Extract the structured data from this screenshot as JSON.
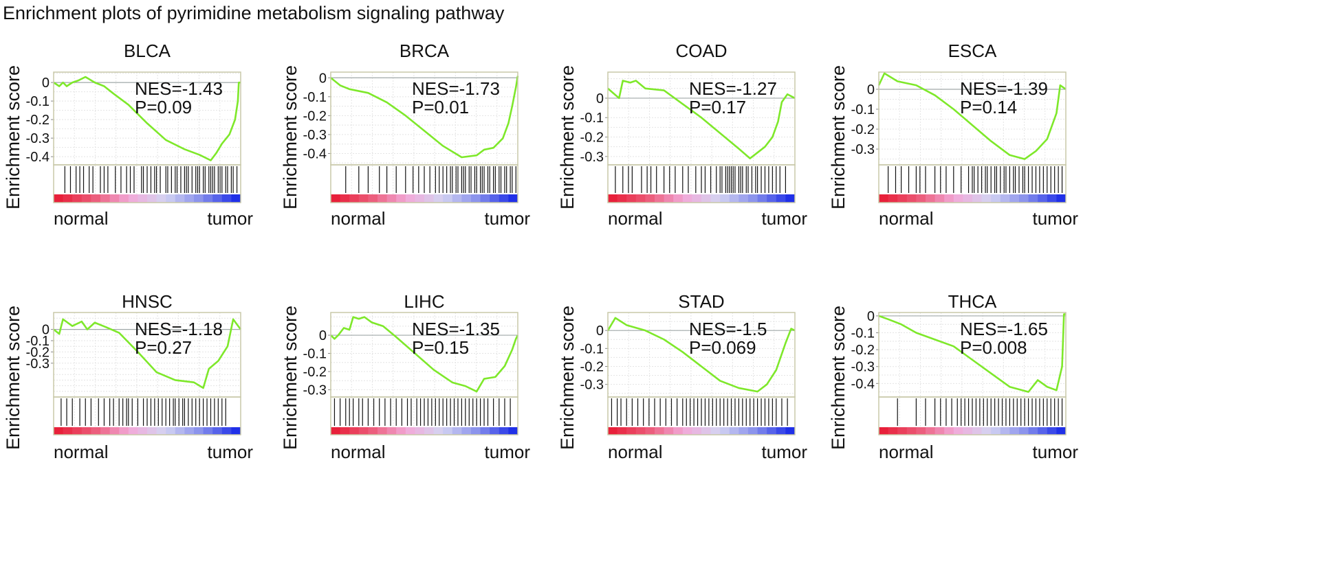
{
  "figure_title": "Enrichment plots of pyrimidine metabolism signaling pathway",
  "colors": {
    "curve": "#7ee82a",
    "frame": "#c8c8a8",
    "zero_line": "#a0a8a8",
    "hits": "#111111",
    "bar_low": "#e8203a",
    "bar_mid_pink": "#f2a8d8",
    "bar_mid_lavender": "#d4d4f2",
    "bar_high": "#2030e8"
  },
  "chart_data": [
    {
      "type": "line",
      "title": "BLCA",
      "ylabel": "Enrichment score",
      "xlabel_left": "normal",
      "xlabel_right": "tumor",
      "nes": "NES=-1.43",
      "p": "P=0.09",
      "ylim": [
        -0.444,
        0.056
      ],
      "yticks": [
        0,
        -0.1,
        -0.2,
        -0.3,
        -0.4
      ],
      "ytick_labels": [
        "0",
        "-0.1",
        "-0.2",
        "-0.3",
        "-0.4"
      ],
      "grid": true,
      "points": [
        [
          0,
          0
        ],
        [
          0.03,
          -0.02
        ],
        [
          0.05,
          0.0
        ],
        [
          0.07,
          -0.02
        ],
        [
          0.1,
          0.0
        ],
        [
          0.13,
          0.01
        ],
        [
          0.17,
          0.03
        ],
        [
          0.22,
          0.0
        ],
        [
          0.27,
          -0.02
        ],
        [
          0.32,
          -0.06
        ],
        [
          0.4,
          -0.12
        ],
        [
          0.5,
          -0.22
        ],
        [
          0.6,
          -0.31
        ],
        [
          0.7,
          -0.36
        ],
        [
          0.78,
          -0.39
        ],
        [
          0.84,
          -0.42
        ],
        [
          0.87,
          -0.38
        ],
        [
          0.9,
          -0.33
        ],
        [
          0.94,
          -0.28
        ],
        [
          0.97,
          -0.2
        ],
        [
          0.985,
          -0.1
        ],
        [
          0.99,
          0.0
        ],
        [
          1.0,
          0.0
        ]
      ],
      "hits": [
        0.06,
        0.09,
        0.12,
        0.14,
        0.16,
        0.19,
        0.21,
        0.25,
        0.27,
        0.29,
        0.33,
        0.36,
        0.39,
        0.41,
        0.43,
        0.47,
        0.48,
        0.5,
        0.52,
        0.54,
        0.55,
        0.57,
        0.6,
        0.61,
        0.63,
        0.65,
        0.66,
        0.68,
        0.7,
        0.71,
        0.72,
        0.74,
        0.76,
        0.77,
        0.78,
        0.8,
        0.81,
        0.83,
        0.84,
        0.85,
        0.86,
        0.88,
        0.89,
        0.9,
        0.92,
        0.93,
        0.95,
        0.96,
        0.98
      ]
    },
    {
      "type": "line",
      "title": "BRCA",
      "ylabel": "Enrichment score",
      "xlabel_left": "normal",
      "xlabel_right": "tumor",
      "nes": "NES=-1.73",
      "p": "P=0.01",
      "ylim": [
        -0.46,
        0.03
      ],
      "yticks": [
        0,
        -0.1,
        -0.2,
        -0.3,
        -0.4
      ],
      "ytick_labels": [
        "0",
        "-0.1",
        "-0.2",
        "-0.3",
        "-0.4"
      ],
      "grid": true,
      "points": [
        [
          0,
          0
        ],
        [
          0.05,
          -0.04
        ],
        [
          0.1,
          -0.06
        ],
        [
          0.2,
          -0.08
        ],
        [
          0.3,
          -0.13
        ],
        [
          0.4,
          -0.2
        ],
        [
          0.5,
          -0.28
        ],
        [
          0.6,
          -0.36
        ],
        [
          0.7,
          -0.42
        ],
        [
          0.78,
          -0.41
        ],
        [
          0.82,
          -0.38
        ],
        [
          0.87,
          -0.37
        ],
        [
          0.92,
          -0.32
        ],
        [
          0.95,
          -0.24
        ],
        [
          0.97,
          -0.15
        ],
        [
          0.99,
          -0.05
        ],
        [
          1.0,
          0.01
        ]
      ],
      "hits": [
        0.08,
        0.15,
        0.2,
        0.26,
        0.3,
        0.35,
        0.4,
        0.44,
        0.47,
        0.5,
        0.53,
        0.56,
        0.58,
        0.6,
        0.62,
        0.64,
        0.65,
        0.67,
        0.68,
        0.7,
        0.71,
        0.72,
        0.74,
        0.75,
        0.77,
        0.78,
        0.8,
        0.81,
        0.82,
        0.84,
        0.85,
        0.87,
        0.88,
        0.9,
        0.91,
        0.93,
        0.94,
        0.96,
        0.97,
        0.99
      ]
    },
    {
      "type": "line",
      "title": "COAD",
      "ylabel": "Enrichment score",
      "xlabel_left": "normal",
      "xlabel_right": "tumor",
      "nes": "NES=-1.27",
      "p": "P=0.17",
      "ylim": [
        -0.343,
        0.134
      ],
      "yticks": [
        0,
        -0.1,
        -0.2,
        -0.3
      ],
      "ytick_labels": [
        "0",
        "-0.1",
        "-0.2",
        "-0.3"
      ],
      "grid": true,
      "points": [
        [
          0,
          0.05
        ],
        [
          0.06,
          0.0
        ],
        [
          0.08,
          0.09
        ],
        [
          0.12,
          0.08
        ],
        [
          0.15,
          0.09
        ],
        [
          0.2,
          0.05
        ],
        [
          0.3,
          0.04
        ],
        [
          0.4,
          -0.03
        ],
        [
          0.5,
          -0.1
        ],
        [
          0.6,
          -0.18
        ],
        [
          0.7,
          -0.26
        ],
        [
          0.76,
          -0.31
        ],
        [
          0.8,
          -0.28
        ],
        [
          0.84,
          -0.25
        ],
        [
          0.88,
          -0.2
        ],
        [
          0.91,
          -0.12
        ],
        [
          0.93,
          -0.02
        ],
        [
          0.96,
          0.02
        ],
        [
          1.0,
          0.0
        ]
      ],
      "hits": [
        0.04,
        0.08,
        0.11,
        0.13,
        0.18,
        0.21,
        0.23,
        0.26,
        0.3,
        0.33,
        0.36,
        0.4,
        0.43,
        0.47,
        0.5,
        0.52,
        0.55,
        0.58,
        0.6,
        0.61,
        0.63,
        0.64,
        0.65,
        0.66,
        0.67,
        0.68,
        0.7,
        0.71,
        0.72,
        0.74,
        0.75,
        0.77,
        0.79,
        0.8,
        0.82,
        0.84,
        0.86,
        0.88,
        0.9,
        0.92,
        0.95
      ]
    },
    {
      "type": "line",
      "title": "ESCA",
      "ylabel": "Enrichment score",
      "xlabel_left": "normal",
      "xlabel_right": "tumor",
      "nes": "NES=-1.39",
      "p": "P=0.14",
      "ylim": [
        -0.379,
        0.086
      ],
      "yticks": [
        0,
        -0.1,
        -0.2,
        -0.3
      ],
      "ytick_labels": [
        "0",
        "-0.1",
        "-0.2",
        "-0.3"
      ],
      "grid": true,
      "points": [
        [
          0,
          0.02
        ],
        [
          0.03,
          0.08
        ],
        [
          0.1,
          0.04
        ],
        [
          0.2,
          0.02
        ],
        [
          0.3,
          -0.03
        ],
        [
          0.4,
          -0.1
        ],
        [
          0.5,
          -0.18
        ],
        [
          0.6,
          -0.26
        ],
        [
          0.7,
          -0.33
        ],
        [
          0.78,
          -0.35
        ],
        [
          0.84,
          -0.31
        ],
        [
          0.9,
          -0.25
        ],
        [
          0.95,
          -0.12
        ],
        [
          0.97,
          0.02
        ],
        [
          1.0,
          0.0
        ]
      ],
      "hits": [
        0.05,
        0.09,
        0.12,
        0.16,
        0.2,
        0.22,
        0.25,
        0.3,
        0.33,
        0.36,
        0.4,
        0.44,
        0.48,
        0.5,
        0.51,
        0.53,
        0.55,
        0.57,
        0.58,
        0.6,
        0.62,
        0.63,
        0.65,
        0.67,
        0.68,
        0.7,
        0.72,
        0.73,
        0.75,
        0.77,
        0.78,
        0.8,
        0.82,
        0.84,
        0.86,
        0.88,
        0.9,
        0.92,
        0.94,
        0.96,
        0.98
      ]
    },
    {
      "type": "line",
      "title": "HNSC",
      "ylabel": "Enrichment score",
      "xlabel_left": "normal",
      "xlabel_right": "tumor",
      "nes": "NES=-1.18",
      "p": "P=0.27",
      "ylim": [
        -0.6,
        0.15
      ],
      "yticks": [
        0,
        -0.1,
        -0.2,
        -0.3
      ],
      "ytick_labels": [
        "0",
        "-0.1",
        "-0.2",
        "-0.3"
      ],
      "grid": true,
      "points": [
        [
          0,
          0
        ],
        [
          0.03,
          -0.04
        ],
        [
          0.05,
          0.09
        ],
        [
          0.1,
          0.03
        ],
        [
          0.15,
          0.07
        ],
        [
          0.18,
          0.0
        ],
        [
          0.22,
          0.06
        ],
        [
          0.28,
          0.02
        ],
        [
          0.35,
          -0.03
        ],
        [
          0.45,
          -0.2
        ],
        [
          0.55,
          -0.38
        ],
        [
          0.65,
          -0.45
        ],
        [
          0.75,
          -0.47
        ],
        [
          0.8,
          -0.52
        ],
        [
          0.83,
          -0.35
        ],
        [
          0.88,
          -0.28
        ],
        [
          0.93,
          -0.15
        ],
        [
          0.96,
          0.09
        ],
        [
          1.0,
          0.0
        ]
      ],
      "hits": [
        0.04,
        0.07,
        0.1,
        0.14,
        0.17,
        0.2,
        0.24,
        0.27,
        0.3,
        0.32,
        0.35,
        0.37,
        0.39,
        0.4,
        0.42,
        0.45,
        0.48,
        0.5,
        0.52,
        0.54,
        0.56,
        0.58,
        0.6,
        0.62,
        0.64,
        0.65,
        0.67,
        0.69,
        0.7,
        0.72,
        0.74,
        0.76,
        0.78,
        0.8,
        0.82,
        0.84,
        0.86,
        0.88,
        0.9,
        0.92
      ]
    },
    {
      "type": "line",
      "title": "LIHC",
      "ylabel": "Enrichment score",
      "xlabel_left": "normal",
      "xlabel_right": "tumor",
      "nes": "NES=-1.35",
      "p": "P=0.15",
      "ylim": [
        -0.34,
        0.125
      ],
      "yticks": [
        0,
        -0.1,
        -0.2,
        -0.3
      ],
      "ytick_labels": [
        "0",
        "-0.1",
        "-0.2",
        "-0.3"
      ],
      "grid": true,
      "points": [
        [
          0,
          0
        ],
        [
          0.02,
          -0.02
        ],
        [
          0.04,
          0.0
        ],
        [
          0.07,
          0.04
        ],
        [
          0.1,
          0.03
        ],
        [
          0.12,
          0.1
        ],
        [
          0.15,
          0.09
        ],
        [
          0.18,
          0.1
        ],
        [
          0.22,
          0.07
        ],
        [
          0.28,
          0.05
        ],
        [
          0.35,
          -0.01
        ],
        [
          0.45,
          -0.1
        ],
        [
          0.55,
          -0.19
        ],
        [
          0.65,
          -0.26
        ],
        [
          0.72,
          -0.28
        ],
        [
          0.78,
          -0.31
        ],
        [
          0.82,
          -0.24
        ],
        [
          0.88,
          -0.23
        ],
        [
          0.93,
          -0.17
        ],
        [
          0.97,
          -0.08
        ],
        [
          0.99,
          -0.02
        ],
        [
          1.0,
          0.0
        ]
      ],
      "hits": [
        0.02,
        0.05,
        0.08,
        0.1,
        0.12,
        0.15,
        0.17,
        0.2,
        0.23,
        0.26,
        0.29,
        0.32,
        0.35,
        0.38,
        0.41,
        0.43,
        0.46,
        0.48,
        0.5,
        0.52,
        0.54,
        0.56,
        0.58,
        0.6,
        0.62,
        0.64,
        0.66,
        0.68,
        0.7,
        0.72,
        0.74,
        0.76,
        0.78,
        0.8,
        0.82,
        0.84,
        0.87,
        0.9,
        0.93,
        0.96
      ]
    },
    {
      "type": "line",
      "title": "STAD",
      "ylabel": "Enrichment score",
      "xlabel_left": "normal",
      "xlabel_right": "tumor",
      "nes": "NES=-1.5",
      "p": "P=0.069",
      "ylim": [
        -0.37,
        0.1
      ],
      "yticks": [
        0,
        -0.1,
        -0.2,
        -0.3
      ],
      "ytick_labels": [
        "0",
        "-0.1",
        "-0.2",
        "-0.3"
      ],
      "grid": true,
      "points": [
        [
          0,
          0
        ],
        [
          0.04,
          0.07
        ],
        [
          0.1,
          0.03
        ],
        [
          0.2,
          0.0
        ],
        [
          0.3,
          -0.05
        ],
        [
          0.4,
          -0.12
        ],
        [
          0.5,
          -0.2
        ],
        [
          0.6,
          -0.28
        ],
        [
          0.7,
          -0.32
        ],
        [
          0.8,
          -0.34
        ],
        [
          0.85,
          -0.3
        ],
        [
          0.9,
          -0.22
        ],
        [
          0.95,
          -0.07
        ],
        [
          0.98,
          0.01
        ],
        [
          1.0,
          0.0
        ]
      ],
      "hits": [
        0.02,
        0.05,
        0.07,
        0.1,
        0.13,
        0.16,
        0.19,
        0.22,
        0.25,
        0.28,
        0.31,
        0.34,
        0.37,
        0.4,
        0.42,
        0.44,
        0.46,
        0.48,
        0.5,
        0.52,
        0.54,
        0.56,
        0.58,
        0.6,
        0.62,
        0.64,
        0.66,
        0.68,
        0.7,
        0.72,
        0.74,
        0.76,
        0.78,
        0.8,
        0.82,
        0.84,
        0.86,
        0.88,
        0.9,
        0.93,
        0.96
      ]
    },
    {
      "type": "line",
      "title": "THCA",
      "ylabel": "Enrichment score",
      "xlabel_left": "normal",
      "xlabel_right": "tumor",
      "nes": "NES=-1.65",
      "p": "P=0.008",
      "ylim": [
        -0.48,
        0.02
      ],
      "yticks": [
        0,
        -0.1,
        -0.2,
        -0.3,
        -0.4
      ],
      "ytick_labels": [
        "0",
        "-0.1",
        "-0.2",
        "-0.3",
        "-0.4"
      ],
      "grid": true,
      "points": [
        [
          0,
          0
        ],
        [
          0.05,
          -0.02
        ],
        [
          0.12,
          -0.05
        ],
        [
          0.2,
          -0.1
        ],
        [
          0.3,
          -0.14
        ],
        [
          0.4,
          -0.18
        ],
        [
          0.5,
          -0.26
        ],
        [
          0.6,
          -0.34
        ],
        [
          0.7,
          -0.42
        ],
        [
          0.8,
          -0.45
        ],
        [
          0.85,
          -0.38
        ],
        [
          0.9,
          -0.42
        ],
        [
          0.95,
          -0.44
        ],
        [
          0.98,
          -0.3
        ],
        [
          0.99,
          0.01
        ],
        [
          1.0,
          0.01
        ]
      ],
      "hits": [
        0.1,
        0.2,
        0.25,
        0.3,
        0.33,
        0.36,
        0.39,
        0.42,
        0.44,
        0.46,
        0.48,
        0.5,
        0.52,
        0.54,
        0.56,
        0.58,
        0.6,
        0.62,
        0.64,
        0.66,
        0.68,
        0.7,
        0.72,
        0.74,
        0.76,
        0.78,
        0.8,
        0.82,
        0.84,
        0.86,
        0.88,
        0.9,
        0.92,
        0.94,
        0.96,
        0.98
      ]
    }
  ]
}
